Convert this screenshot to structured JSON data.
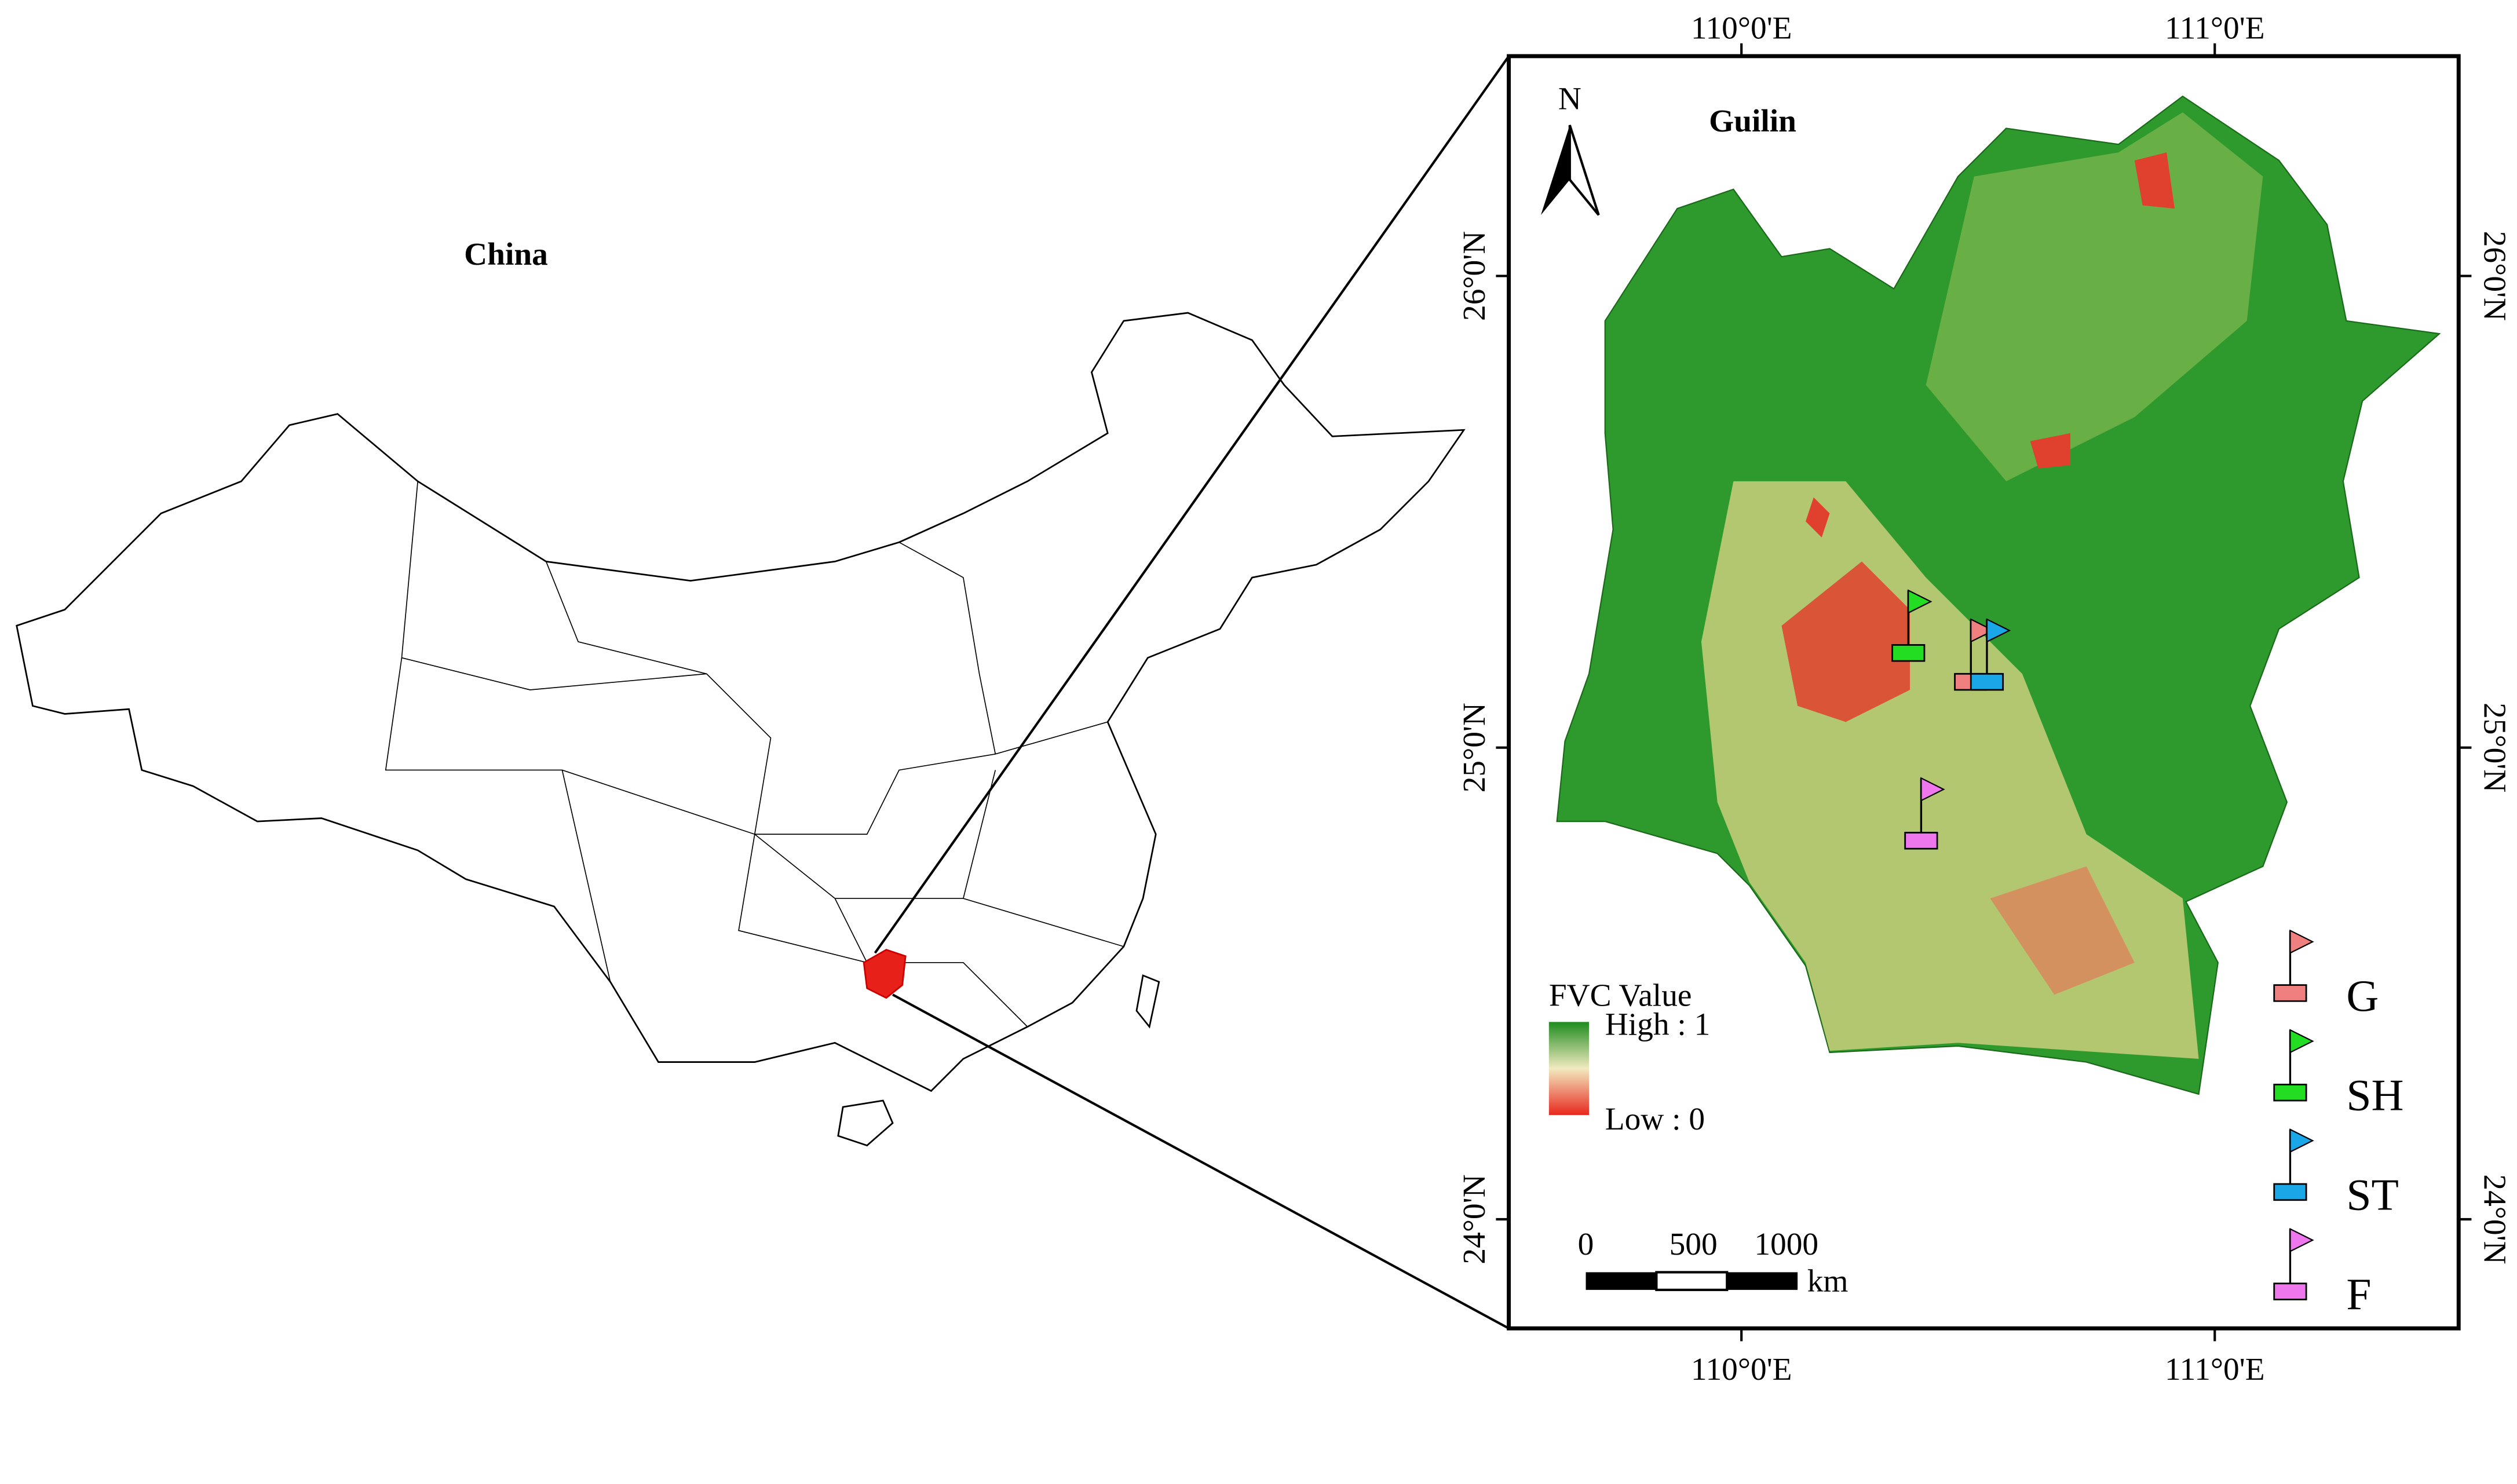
{
  "overview": {
    "title": "China"
  },
  "inset": {
    "title": "Guilin",
    "north": "N",
    "top_labels": [
      "110°0'E",
      "111°0'E"
    ],
    "bottom_labels": [
      "110°0'E",
      "111°0'E"
    ],
    "left_labels": [
      "26°0'N",
      "25°0'N",
      "24°0'N"
    ],
    "right_labels": [
      "26°0'N",
      "25°0'N",
      "24°0'N"
    ],
    "fvc_legend": {
      "title": "FVC Value",
      "high": "High : 1",
      "low": "Low : 0"
    },
    "scale_bar": {
      "labels": [
        0,
        500,
        1000
      ],
      "unit": "km"
    },
    "sites": [
      {
        "label": "G",
        "color": "#f08080"
      },
      {
        "label": "SH",
        "color": "#22dd22"
      },
      {
        "label": "ST",
        "color": "#1aa7e8"
      },
      {
        "label": "F",
        "color": "#ee77ee"
      }
    ]
  }
}
